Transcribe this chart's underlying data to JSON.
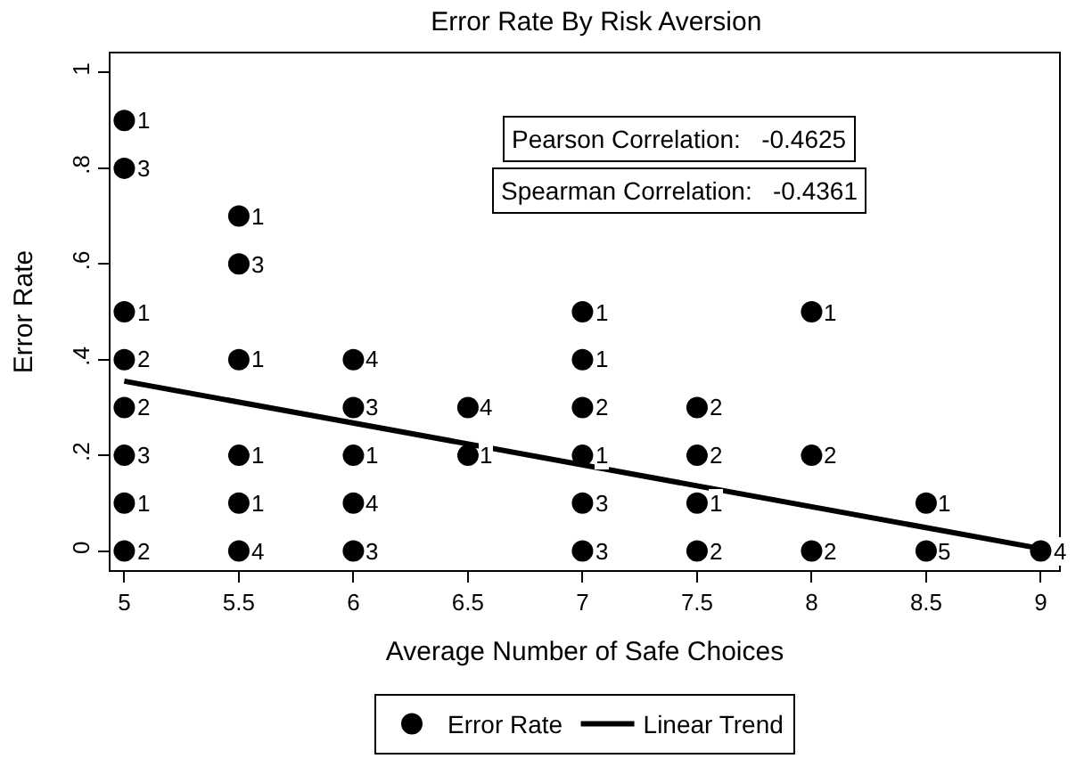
{
  "chart_data": {
    "type": "scatter",
    "title": "Error Rate By Risk Aversion",
    "xlabel": "Average Number of Safe Choices",
    "ylabel": "Error Rate",
    "annotations": [
      "Pearson Correlation:   -0.4625",
      "Spearman Correlation:   -0.4361",
      {
        "text": "1",
        "x": 5,
        "y": 0.9
      },
      {
        "text": "3",
        "x": 5,
        "y": 0.8
      },
      {
        "text": "1",
        "x": 5,
        "y": 0.5
      },
      {
        "text": "2",
        "x": 5,
        "y": 0.4
      },
      {
        "text": "2",
        "x": 5,
        "y": 0.3
      },
      {
        "text": "3",
        "x": 5,
        "y": 0.2
      },
      {
        "text": "1",
        "x": 5,
        "y": 0.1
      },
      {
        "text": "2",
        "x": 5,
        "y": 0
      },
      {
        "text": "1",
        "x": 5.5,
        "y": 0.7
      },
      {
        "text": "3",
        "x": 5.5,
        "y": 0.6
      },
      {
        "text": "1",
        "x": 5.5,
        "y": 0.4
      },
      {
        "text": "1",
        "x": 5.5,
        "y": 0.2
      },
      {
        "text": "1",
        "x": 5.5,
        "y": 0.1
      },
      {
        "text": "4",
        "x": 5.5,
        "y": 0
      },
      {
        "text": "4",
        "x": 6,
        "y": 0.4
      },
      {
        "text": "3",
        "x": 6,
        "y": 0.3
      },
      {
        "text": "1",
        "x": 6,
        "y": 0.2
      },
      {
        "text": "4",
        "x": 6,
        "y": 0.1
      },
      {
        "text": "3",
        "x": 6,
        "y": 0
      },
      {
        "text": "4",
        "x": 6.5,
        "y": 0.3
      },
      {
        "text": "1",
        "x": 6.5,
        "y": 0.2
      },
      {
        "text": "1",
        "x": 7,
        "y": 0.5
      },
      {
        "text": "1",
        "x": 7,
        "y": 0.4
      },
      {
        "text": "2",
        "x": 7,
        "y": 0.3
      },
      {
        "text": "1",
        "x": 7,
        "y": 0.2
      },
      {
        "text": "3",
        "x": 7,
        "y": 0.1
      },
      {
        "text": "3",
        "x": 7,
        "y": 0
      },
      {
        "text": "2",
        "x": 7.5,
        "y": 0.3
      },
      {
        "text": "2",
        "x": 7.5,
        "y": 0.2
      },
      {
        "text": "1",
        "x": 7.5,
        "y": 0.1
      },
      {
        "text": "2",
        "x": 7.5,
        "y": 0
      },
      {
        "text": "1",
        "x": 8,
        "y": 0.5
      },
      {
        "text": "2",
        "x": 8,
        "y": 0.2
      },
      {
        "text": "2",
        "x": 8,
        "y": 0
      },
      {
        "text": "1",
        "x": 8.5,
        "y": 0.1
      },
      {
        "text": "5",
        "x": 8.5,
        "y": 0
      },
      {
        "text": "4",
        "x": 9,
        "y": 0
      }
    ],
    "xlim": [
      4.94,
      9.08
    ],
    "xticks": [
      5,
      5.5,
      6,
      6.5,
      7,
      7.5,
      8,
      8.5,
      9
    ],
    "ylim": [
      -0.04,
      1.04
    ],
    "yticks": [
      0,
      {
        "value": 0.2,
        "label": ".2"
      },
      {
        "value": 0.4,
        "label": ".4"
      },
      {
        "value": 0.6,
        "label": ".6"
      },
      {
        "value": 0.8,
        "label": ".8"
      },
      1
    ],
    "legend": "bottom",
    "series": [
      {
        "name": "Error Rate",
        "color": "#000000",
        "marker": "circle",
        "x": [
          5,
          5,
          5,
          5,
          5,
          5,
          5,
          5,
          5.5,
          5.5,
          5.5,
          5.5,
          5.5,
          5.5,
          6,
          6,
          6,
          6,
          6,
          6.5,
          6.5,
          7,
          7,
          7,
          7,
          7,
          7,
          7.5,
          7.5,
          7.5,
          7.5,
          8,
          8,
          8,
          8.5,
          8.5,
          9
        ],
        "values": [
          0.9,
          0.8,
          0.5,
          0.4,
          0.3,
          0.2,
          0.1,
          0,
          0.7,
          0.6,
          0.4,
          0.2,
          0.1,
          0,
          0.4,
          0.3,
          0.2,
          0.1,
          0,
          0.3,
          0.2,
          0.5,
          0.4,
          0.3,
          0.2,
          0.1,
          0,
          0.3,
          0.2,
          0.1,
          0,
          0.5,
          0.2,
          0,
          0.1,
          0,
          0
        ]
      },
      {
        "name": "Linear Trend",
        "type": "line",
        "color": "#000000",
        "line_style": "solid",
        "x": [
          5,
          9
        ],
        "values": [
          0.355,
          0.005
        ]
      }
    ]
  }
}
